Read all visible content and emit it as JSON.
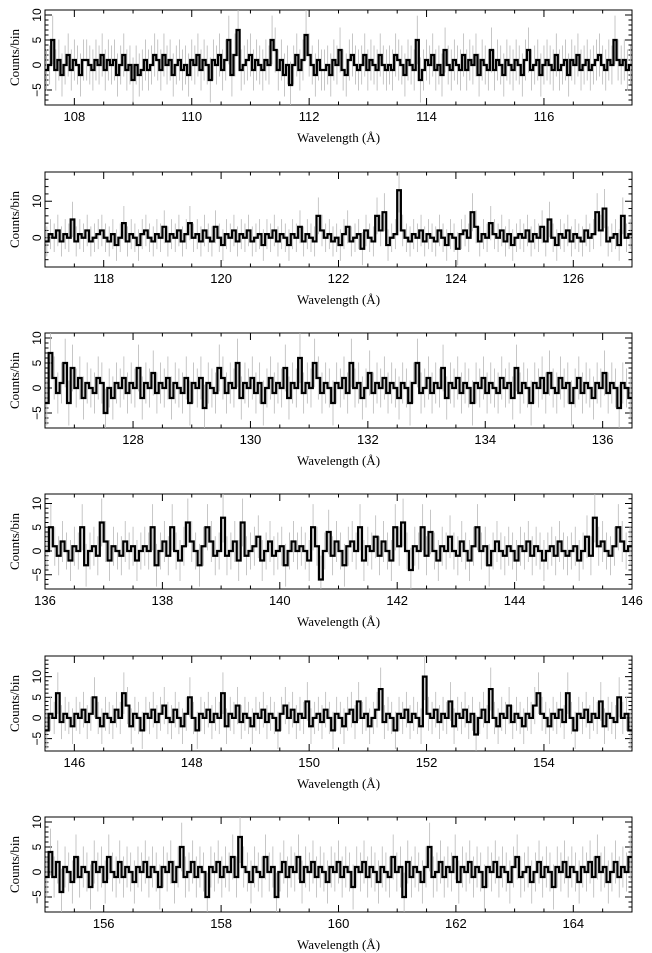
{
  "chart_data": [
    {
      "type": "line",
      "xlabel": "Wavelength (Å)",
      "ylabel": "Counts/bin",
      "xlim": [
        107.5,
        117.5
      ],
      "ylim": [
        -8,
        11
      ],
      "xticks": [
        108,
        110,
        112,
        114,
        116
      ],
      "yticks": [
        -5,
        0,
        5,
        10
      ],
      "series": [
        {
          "line_style": "step",
          "error_bars": true,
          "x_start": 107.5,
          "x_end": 117.5,
          "values": [
            -1,
            0,
            5,
            -1,
            1,
            -2,
            0,
            2,
            -1,
            1,
            0,
            -2,
            1,
            1,
            0,
            -1,
            1,
            0,
            2,
            -1,
            1,
            0,
            1,
            -2,
            0,
            2,
            -1,
            0,
            -3,
            0,
            -2,
            -1,
            1,
            -1,
            0,
            2,
            1,
            -1,
            2,
            0,
            1,
            -2,
            0,
            1,
            -1,
            0,
            -2,
            1,
            0,
            2,
            -1,
            1,
            0,
            -3,
            1,
            0,
            2,
            -1,
            1,
            5,
            -2,
            2,
            7,
            -1,
            0,
            1,
            2,
            -1,
            1,
            0,
            -1,
            1,
            0,
            5,
            3,
            -1,
            1,
            -2,
            0,
            -4,
            0,
            2,
            -1,
            1,
            6,
            2,
            0,
            -2,
            1,
            -1,
            -1,
            0,
            -2,
            1,
            0,
            3,
            -1,
            -2,
            1,
            2,
            0,
            -1,
            0,
            2,
            -1,
            1,
            0,
            -1,
            2,
            0,
            -1,
            0,
            -1,
            2,
            1,
            0,
            -2,
            1,
            0,
            -1,
            5,
            -3,
            -1,
            1,
            0,
            2,
            -1,
            0,
            -2,
            3,
            0,
            -1,
            1,
            0,
            -1,
            2,
            -1,
            1,
            0,
            2,
            -2,
            1,
            0,
            -1,
            3,
            -1,
            1,
            0,
            -2,
            1,
            0,
            -1,
            1,
            0,
            -2,
            1,
            3,
            -1,
            0,
            1,
            -2,
            0,
            1,
            0,
            -1,
            2,
            -1,
            0,
            1,
            -2,
            1,
            0,
            2,
            -1,
            0,
            1,
            -1,
            0,
            1,
            2,
            0,
            -1,
            1,
            0,
            5,
            1,
            0,
            1,
            -1,
            0
          ]
        }
      ]
    },
    {
      "type": "line",
      "xlabel": "Wavelength (Å)",
      "ylabel": "Counts/bin",
      "xlim": [
        117.0,
        127.0
      ],
      "ylim": [
        -8,
        18
      ],
      "xticks": [
        118,
        120,
        122,
        124,
        126
      ],
      "yticks": [
        0,
        10
      ],
      "series": [
        {
          "line_style": "step",
          "error_bars": true,
          "x_start": 117.0,
          "x_end": 127.0,
          "values": [
            -1,
            1,
            0,
            2,
            -1,
            1,
            0,
            5,
            -1,
            1,
            0,
            2,
            -1,
            0,
            1,
            2,
            0,
            -1,
            1,
            -2,
            0,
            4,
            -1,
            1,
            0,
            -2,
            1,
            2,
            0,
            -1,
            1,
            0,
            3,
            -1,
            1,
            0,
            2,
            -1,
            1,
            4,
            0,
            1,
            -1,
            2,
            0,
            -1,
            3,
            0,
            -2,
            1,
            0,
            2,
            -1,
            1,
            0,
            2,
            -1,
            0,
            1,
            -2,
            1,
            0,
            2,
            -1,
            1,
            0,
            -2,
            1,
            0,
            3,
            -1,
            1,
            0,
            -1,
            6,
            2,
            0,
            1,
            -1,
            0,
            -2,
            1,
            3,
            -1,
            0,
            1,
            -3,
            2,
            0,
            -1,
            6,
            2,
            7,
            -2,
            0,
            1,
            13,
            2,
            0,
            -1,
            1,
            0,
            2,
            -1,
            1,
            0,
            -1,
            2,
            0,
            -2,
            1,
            0,
            -3,
            1,
            2,
            0,
            7,
            3,
            -1,
            1,
            0,
            4,
            1,
            0,
            2,
            -1,
            1,
            -2,
            0,
            1,
            0,
            2,
            -1,
            1,
            0,
            3,
            -1,
            5,
            0,
            -2,
            1,
            0,
            2,
            -1,
            1,
            0,
            -1,
            2,
            0,
            1,
            7,
            2,
            8,
            -1,
            0,
            1,
            -2,
            6,
            0,
            1
          ]
        }
      ]
    },
    {
      "type": "line",
      "xlabel": "Wavelength (Å)",
      "ylabel": "Counts/bin",
      "xlim": [
        126.5,
        136.5
      ],
      "ylim": [
        -8,
        11
      ],
      "xticks": [
        128,
        130,
        132,
        134,
        136
      ],
      "yticks": [
        -5,
        0,
        5,
        10
      ],
      "series": [
        {
          "line_style": "step",
          "error_bars": true,
          "x_start": 126.5,
          "x_end": 136.5,
          "values": [
            -3,
            7,
            2,
            -1,
            1,
            5,
            -3,
            4,
            0,
            2,
            -2,
            1,
            0,
            -1,
            2,
            1,
            -5,
            0,
            -2,
            1,
            0,
            2,
            -1,
            1,
            0,
            4,
            -2,
            1,
            0,
            3,
            -1,
            1,
            0,
            2,
            -2,
            1,
            0,
            -1,
            2,
            -3,
            1,
            0,
            2,
            -4,
            1,
            0,
            -1,
            4,
            2,
            -1,
            1,
            0,
            5,
            -2,
            1,
            0,
            2,
            -1,
            1,
            -3,
            0,
            2,
            -1,
            1,
            0,
            4,
            -2,
            1,
            0,
            6,
            -1,
            1,
            0,
            5,
            2,
            -1,
            1,
            0,
            -3,
            1,
            0,
            2,
            -1,
            5,
            0,
            1,
            -2,
            0,
            3,
            -1,
            1,
            0,
            2,
            -1,
            1,
            0,
            -2,
            1,
            0,
            -3,
            1,
            5,
            -1,
            0,
            2,
            -1,
            1,
            0,
            4,
            -2,
            1,
            0,
            2,
            -1,
            1,
            0,
            -3,
            1,
            0,
            2,
            -1,
            1,
            0,
            -1,
            2,
            0,
            1,
            -2,
            4,
            -1,
            1,
            0,
            -3,
            1,
            0,
            2,
            -1,
            3,
            0,
            -1,
            2,
            0,
            1,
            -3,
            0,
            2,
            -1,
            1,
            0,
            -2,
            1,
            0,
            3,
            -1,
            1,
            0,
            -4,
            1,
            0,
            -2
          ]
        }
      ]
    },
    {
      "type": "line",
      "xlabel": "Wavelength (Å)",
      "ylabel": "Counts/bin",
      "xlim": [
        136.0,
        146.0
      ],
      "ylim": [
        -8,
        12
      ],
      "xticks": [
        136,
        138,
        140,
        142,
        144,
        146
      ],
      "yticks": [
        -5,
        0,
        5,
        10
      ],
      "series": [
        {
          "line_style": "step",
          "error_bars": true,
          "x_start": 136.0,
          "x_end": 146.0,
          "values": [
            0,
            5,
            1,
            -1,
            2,
            0,
            -2,
            1,
            0,
            5,
            -3,
            0,
            1,
            -1,
            6,
            2,
            -2,
            1,
            0,
            -1,
            2,
            0,
            1,
            -2,
            0,
            1,
            0,
            5,
            -3,
            0,
            2,
            -1,
            5,
            0,
            -2,
            1,
            6,
            2,
            0,
            -3,
            1,
            5,
            2,
            -1,
            0,
            7,
            -1,
            0,
            2,
            -2,
            6,
            -1,
            0,
            1,
            3,
            -2,
            0,
            2,
            -1,
            0,
            1,
            -3,
            0,
            2,
            0,
            1,
            0,
            -2,
            5,
            1,
            -6,
            0,
            4,
            -1,
            2,
            0,
            -3,
            1,
            2,
            0,
            5,
            -2,
            1,
            0,
            3,
            -1,
            2,
            0,
            -2,
            5,
            1,
            6,
            0,
            -4,
            1,
            0,
            5,
            -1,
            4,
            0,
            -2,
            1,
            0,
            3,
            0,
            -1,
            2,
            0,
            -2,
            1,
            5,
            0,
            1,
            -3,
            0,
            2,
            0,
            -1,
            1,
            0,
            -2,
            1,
            0,
            2,
            -1,
            1,
            0,
            -2,
            0,
            1,
            -1,
            2,
            0,
            -1,
            0,
            1,
            -2,
            0,
            3,
            -1,
            7,
            1,
            2,
            0,
            -1,
            1,
            5,
            2,
            0,
            1
          ]
        }
      ]
    },
    {
      "type": "line",
      "xlabel": "Wavelength (Å)",
      "ylabel": "Counts/bin",
      "xlim": [
        145.5,
        155.5
      ],
      "ylim": [
        -8,
        15
      ],
      "xticks": [
        146,
        148,
        150,
        152,
        154
      ],
      "yticks": [
        -5,
        0,
        5,
        10
      ],
      "series": [
        {
          "line_style": "step",
          "error_bars": true,
          "x_start": 145.5,
          "x_end": 155.5,
          "values": [
            -3,
            1,
            0,
            6,
            -1,
            1,
            0,
            -2,
            1,
            0,
            2,
            -1,
            1,
            5,
            0,
            -2,
            1,
            0,
            -1,
            2,
            0,
            6,
            3,
            -2,
            1,
            0,
            -3,
            1,
            0,
            2,
            -1,
            1,
            3,
            0,
            -1,
            2,
            0,
            -2,
            1,
            5,
            0,
            -3,
            1,
            0,
            2,
            -1,
            1,
            0,
            6,
            -2,
            1,
            0,
            3,
            -1,
            1,
            0,
            -2,
            1,
            0,
            2,
            -1,
            1,
            0,
            -3,
            1,
            3,
            0,
            2,
            -1,
            1,
            0,
            4,
            -2,
            0,
            1,
            -1,
            2,
            0,
            -3,
            1,
            0,
            -2,
            1,
            2,
            -1,
            4,
            0,
            1,
            -2,
            0,
            2,
            7,
            -1,
            1,
            0,
            -3,
            1,
            0,
            2,
            -1,
            1,
            0,
            -2,
            10,
            1,
            0,
            2,
            -1,
            1,
            0,
            4,
            -2,
            1,
            0,
            2,
            -1,
            1,
            -4,
            0,
            2,
            -1,
            7,
            0,
            -2,
            1,
            0,
            3,
            -1,
            1,
            0,
            -2,
            1,
            0,
            3,
            6,
            1,
            0,
            -2,
            1,
            0,
            2,
            -1,
            6,
            0,
            -3,
            1,
            0,
            2,
            -1,
            1,
            0,
            4,
            -2,
            1,
            0,
            -1,
            5,
            0,
            1,
            -3
          ]
        }
      ]
    },
    {
      "type": "line",
      "xlabel": "Wavelength (Å)",
      "ylabel": "Counts/bin",
      "xlim": [
        155.0,
        165.0
      ],
      "ylim": [
        -8,
        11
      ],
      "xticks": [
        156,
        158,
        160,
        162,
        164
      ],
      "yticks": [
        -5,
        0,
        5,
        10
      ],
      "series": [
        {
          "line_style": "step",
          "error_bars": true,
          "x_start": 155.0,
          "x_end": 165.0,
          "values": [
            -1,
            4,
            -1,
            2,
            -4,
            1,
            0,
            -2,
            3,
            -1,
            1,
            0,
            -3,
            2,
            0,
            1,
            -2,
            3,
            0,
            -1,
            2,
            -1,
            1,
            0,
            -2,
            1,
            0,
            2,
            -1,
            1,
            0,
            -3,
            1,
            0,
            2,
            -2,
            1,
            5,
            -1,
            0,
            2,
            -1,
            1,
            0,
            -5,
            1,
            0,
            2,
            -1,
            1,
            0,
            3,
            -1,
            7,
            1,
            0,
            -2,
            1,
            0,
            -1,
            3,
            0,
            1,
            -5,
            0,
            2,
            -1,
            1,
            0,
            3,
            -2,
            1,
            0,
            2,
            -1,
            1,
            0,
            -2,
            1,
            0,
            2,
            -1,
            1,
            0,
            -3,
            1,
            0,
            2,
            -1,
            1,
            0,
            -2,
            1,
            0,
            -1,
            3,
            0,
            1,
            -5,
            2,
            -1,
            1,
            0,
            -2,
            1,
            5,
            -1,
            0,
            2,
            -1,
            1,
            0,
            3,
            -2,
            1,
            0,
            2,
            -1,
            1,
            0,
            -3,
            1,
            0,
            2,
            -1,
            1,
            0,
            -2,
            1,
            3,
            -1,
            0,
            1,
            -2,
            0,
            2,
            -1,
            1,
            0,
            -3,
            1,
            0,
            2,
            -1,
            1,
            0,
            -2,
            1,
            0,
            2,
            -1,
            3,
            0,
            1,
            -2,
            0,
            2,
            -1,
            1,
            0,
            3
          ]
        }
      ]
    }
  ]
}
